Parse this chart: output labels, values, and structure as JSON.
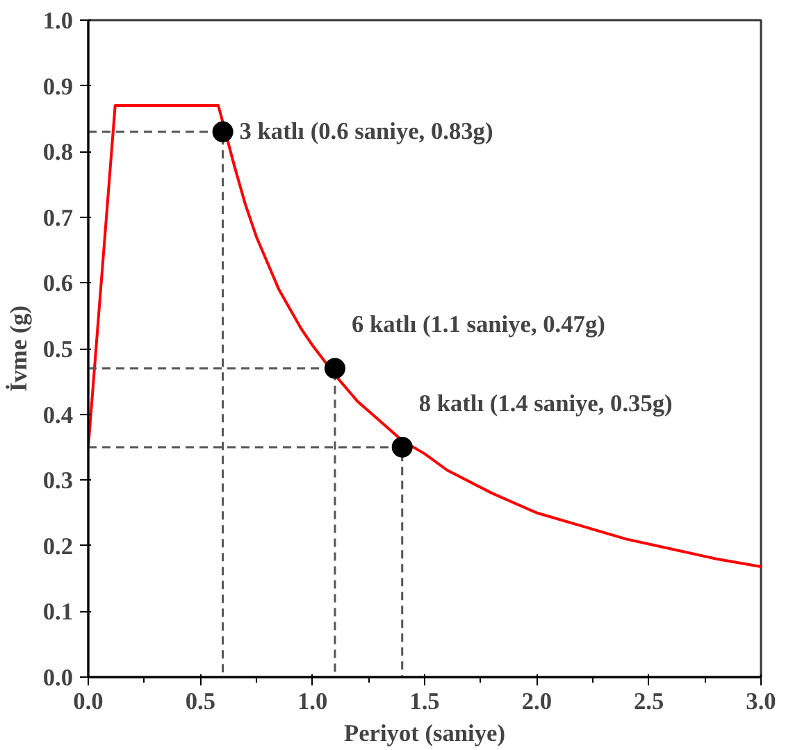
{
  "chart_data": {
    "type": "line",
    "xlabel": "Periyot (saniye)",
    "ylabel": "İvme (g)",
    "xlim": [
      0,
      3.0
    ],
    "ylim": [
      0,
      1.0
    ],
    "xticks": [
      {
        "value": 0,
        "label": "0.0"
      },
      0.5,
      {
        "value": 1,
        "label": "1.0"
      },
      1.5,
      {
        "value": 2,
        "label": "2.0"
      },
      2.5,
      {
        "value": 3,
        "label": "3.0"
      }
    ],
    "yticks": [
      {
        "value": 0,
        "label": "0.0"
      },
      0.1,
      0.2,
      0.3,
      0.4,
      0.5,
      0.6,
      0.7,
      0.8,
      0.9,
      {
        "value": 1,
        "label": "1.0"
      }
    ],
    "grid": false,
    "series": [
      {
        "color": "#ff0000",
        "line_style": "solid",
        "marker": "none",
        "x": [
          0,
          0.12,
          0.58,
          0.65,
          0.7,
          0.75,
          0.8,
          0.85,
          0.9,
          0.95,
          1.0,
          1.1,
          1.2,
          1.3,
          1.4,
          1.5,
          1.6,
          1.8,
          2.0,
          2.2,
          2.4,
          2.6,
          2.8,
          3.0
        ],
        "values": [
          0.35,
          0.87,
          0.87,
          0.78,
          0.72,
          0.67,
          0.63,
          0.59,
          0.56,
          0.53,
          0.505,
          0.46,
          0.42,
          0.39,
          0.36,
          0.34,
          0.315,
          0.28,
          0.25,
          0.23,
          0.21,
          0.195,
          0.18,
          0.168
        ]
      },
      {
        "color": "#555555",
        "line_style": "dashed",
        "marker": "none",
        "x": [
          0,
          0.6,
          0.6
        ],
        "values": [
          0.83,
          0.83,
          0
        ]
      },
      {
        "color": "#555555",
        "line_style": "dashed",
        "marker": "none",
        "x": [
          0,
          1.1,
          1.1
        ],
        "values": [
          0.47,
          0.47,
          0
        ]
      },
      {
        "color": "#555555",
        "line_style": "dashed",
        "marker": "none",
        "x": [
          0,
          1.4,
          1.4
        ],
        "values": [
          0.35,
          0.35,
          0
        ]
      },
      {
        "type": "scatter",
        "color": "#000000",
        "marker": "circle",
        "x": [
          0.6,
          1.1,
          1.4
        ],
        "values": [
          0.83,
          0.47,
          0.35
        ]
      }
    ],
    "annotations": [
      {
        "text": "3 katlı (0.6 saniye, 0.83g)",
        "x": 0.6,
        "y": 0.83
      },
      {
        "text": "6 katlı (1.1 saniye, 0.47g)",
        "x": 1.1,
        "y": 0.47
      },
      {
        "text": "8 katlı (1.4 saniye, 0.35g)",
        "x": 1.4,
        "y": 0.35
      }
    ]
  }
}
